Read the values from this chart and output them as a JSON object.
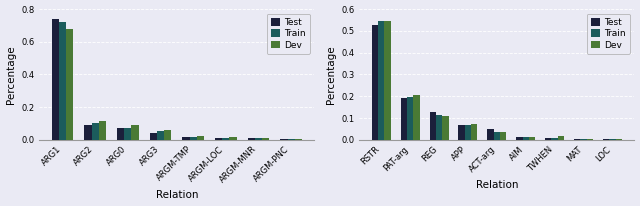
{
  "chart1": {
    "categories": [
      "ARG1",
      "ARG2",
      "ARG0",
      "ARG3",
      "ARGM-TMP",
      "ARGM-LOC",
      "ARGM-MNR",
      "ARGM-PNC"
    ],
    "test": [
      0.74,
      0.093,
      0.075,
      0.043,
      0.015,
      0.013,
      0.012,
      0.008
    ],
    "train": [
      0.718,
      0.105,
      0.075,
      0.052,
      0.02,
      0.013,
      0.011,
      0.007
    ],
    "dev": [
      0.68,
      0.115,
      0.088,
      0.06,
      0.022,
      0.015,
      0.01,
      0.008
    ],
    "ylabel": "Percentage",
    "xlabel": "Relation",
    "ylim": [
      0,
      0.8
    ]
  },
  "chart2": {
    "categories": [
      "RSTR",
      "PAT-arg",
      "REG",
      "APP",
      "ACT-arg",
      "AIM",
      "TWHEN",
      "MAT",
      "LOC"
    ],
    "test": [
      0.527,
      0.192,
      0.128,
      0.068,
      0.05,
      0.015,
      0.008,
      0.005,
      0.004
    ],
    "train": [
      0.543,
      0.195,
      0.114,
      0.07,
      0.038,
      0.014,
      0.009,
      0.005,
      0.004
    ],
    "dev": [
      0.543,
      0.207,
      0.11,
      0.072,
      0.037,
      0.015,
      0.016,
      0.005,
      0.004
    ],
    "ylabel": "Percentage",
    "xlabel": "Relation",
    "ylim": [
      0,
      0.6
    ]
  },
  "colors": {
    "test": "#1b1f3b",
    "train": "#1b5c5c",
    "dev": "#4a7a35"
  },
  "legend_labels": [
    "Test",
    "Train",
    "Dev"
  ],
  "bar_width": 0.22,
  "tick_fontsize": 6.0,
  "label_fontsize": 7.5,
  "legend_fontsize": 6.5,
  "bg_color": "#eaeaf4",
  "axes_bg_color": "#eaeaf4"
}
